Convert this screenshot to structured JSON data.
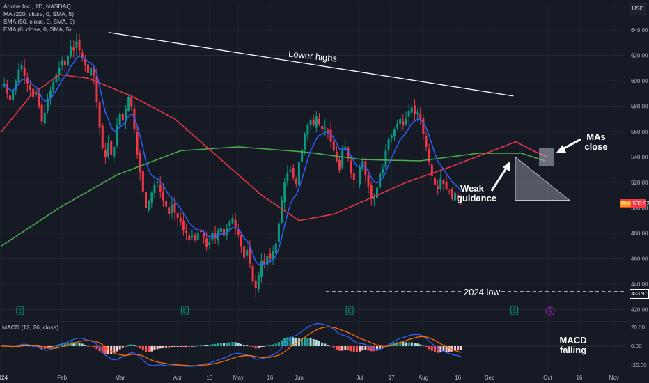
{
  "legend": {
    "symbol": "Adobe Inc., 1D, NASDAQ",
    "ma200": "MA (200, close, 0, SMA, 5)",
    "sma50": "SMA (50, close, 0, SMA, 5)",
    "ema8": "EMA (8, close, 0, SMA, 5)",
    "macd": "MACD (12, 26, close)"
  },
  "currency_button": "USD",
  "annotations": {
    "lower_highs": "Lower highs",
    "weak_guidance_1": "Weak",
    "weak_guidance_2": "guidance",
    "mas_close_1": "MAs",
    "mas_close_2": "close",
    "low_2024": "2024 low",
    "macd_falling_1": "MACD",
    "macd_falling_2": "falling"
  },
  "badges": {
    "pre_label": "Pre",
    "last_price": "503.53",
    "low_value": "433.97",
    "earnings_marker": "E"
  },
  "colors": {
    "background": "#161a25",
    "up_candle": "#089981",
    "down_candle": "#f23645",
    "ma200": "#4caf50",
    "sma50": "#f23645",
    "ema8": "#2962ff",
    "macd_line": "#2962ff",
    "signal_line": "#ff6d00"
  },
  "chart_data": {
    "type": "candlestick",
    "y_axis": {
      "ticks": [
        420,
        440,
        460,
        480,
        500,
        520,
        540,
        560,
        580,
        600,
        620,
        640
      ],
      "ylim": [
        418,
        650
      ]
    },
    "x_axis": {
      "tick_labels": [
        "2024",
        "Feb",
        "Mar",
        "Apr",
        "16",
        "May",
        "16",
        "Jun",
        "Jul",
        "17",
        "Aug",
        "16",
        "Sep",
        "Oct",
        "16",
        "Nov"
      ],
      "tick_index": [
        0,
        21,
        41,
        61,
        72,
        82,
        93,
        103,
        124,
        135,
        146,
        158,
        169,
        189,
        200,
        212
      ]
    },
    "close": [
      596,
      598,
      590,
      585,
      592,
      600,
      609,
      612,
      604,
      598,
      593,
      587,
      591,
      580,
      568,
      575,
      586,
      592,
      599,
      605,
      610,
      616,
      612,
      620,
      627,
      624,
      631,
      624,
      618,
      612,
      606,
      610,
      604,
      583,
      563,
      547,
      540,
      551,
      542,
      548,
      565,
      574,
      569,
      578,
      587,
      580,
      562,
      542,
      528,
      513,
      500,
      505,
      512,
      518,
      520,
      513,
      506,
      501,
      495,
      502,
      496,
      492,
      489,
      482,
      480,
      475,
      478,
      475,
      480,
      481,
      477,
      469,
      473,
      480,
      476,
      482,
      484,
      478,
      484,
      489,
      492,
      485,
      479,
      470,
      461,
      467,
      456,
      442,
      437,
      447,
      458,
      455,
      462,
      460,
      466,
      472,
      488,
      506,
      520,
      527,
      530,
      524,
      519,
      536,
      546,
      558,
      565,
      569,
      565,
      572,
      566,
      562,
      563,
      560,
      552,
      545,
      537,
      530,
      545,
      548,
      539,
      527,
      522,
      520,
      532,
      537,
      526,
      517,
      507,
      509,
      516,
      527,
      531,
      545,
      554,
      557,
      562,
      566,
      570,
      565,
      570,
      576,
      579,
      574,
      575,
      570,
      558,
      548,
      536,
      525,
      518,
      515,
      523,
      519,
      515,
      513,
      507,
      512,
      508,
      503.53
    ],
    "ma200_anchors": [
      [
        0,
        470
      ],
      [
        20,
        500
      ],
      [
        40,
        526
      ],
      [
        62,
        545
      ],
      [
        82,
        548
      ],
      [
        105,
        544
      ],
      [
        125,
        538
      ],
      [
        145,
        537
      ],
      [
        165,
        543
      ],
      [
        180,
        543
      ],
      [
        188,
        537
      ]
    ],
    "sma50_anchors": [
      [
        0,
        560
      ],
      [
        10,
        588
      ],
      [
        20,
        605
      ],
      [
        30,
        602
      ],
      [
        45,
        588
      ],
      [
        60,
        570
      ],
      [
        75,
        540
      ],
      [
        90,
        510
      ],
      [
        103,
        490
      ],
      [
        115,
        495
      ],
      [
        125,
        505
      ],
      [
        140,
        520
      ],
      [
        155,
        532
      ],
      [
        170,
        545
      ],
      [
        178,
        552
      ],
      [
        184,
        545
      ],
      [
        189,
        540
      ]
    ],
    "macd_axis": {
      "ticks": [
        20,
        0,
        -20
      ],
      "ylim": [
        -24,
        28
      ]
    },
    "lower_highs_line": {
      "from": [
        25,
        638
      ],
      "to": [
        182,
        588
      ]
    },
    "low_line": {
      "level": 433.97,
      "from_index": 92
    },
    "ma_close_box": {
      "from_index": 179,
      "to_index": 184,
      "y_range": [
        533,
        547
      ]
    },
    "wedge": {
      "from_index": 182,
      "to_index": 202,
      "top": [
        540,
        506
      ],
      "bottom_level": 506
    }
  }
}
